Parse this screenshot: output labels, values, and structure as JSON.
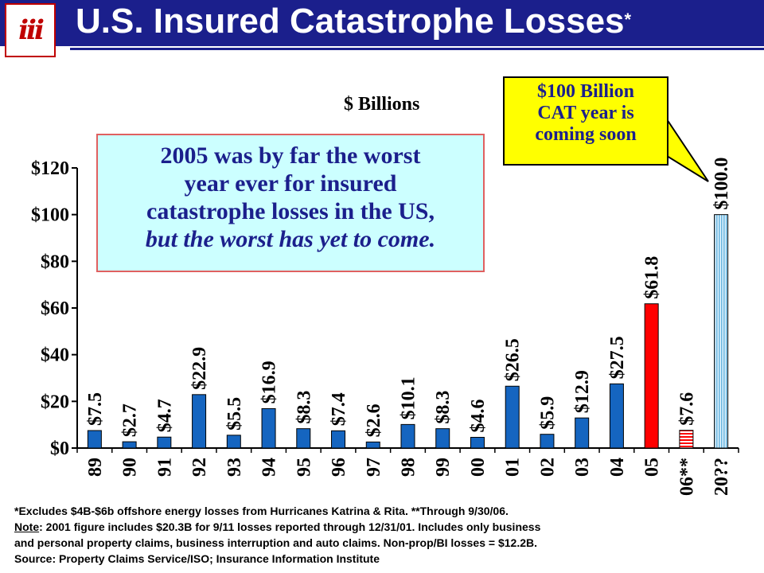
{
  "header": {
    "title": "U.S. Insured Catastrophe Losses",
    "title_mark": "*",
    "logo_text": "iii"
  },
  "unit_label": "$ Billions",
  "annotation": {
    "line1": "2005 was by far the worst",
    "line2": "year ever for insured",
    "line3": "catastrophe losses in the US,",
    "line4": "but the worst has yet to come."
  },
  "callout": {
    "line1": "$100 Billion",
    "line2": "CAT year is",
    "line3": "coming soon"
  },
  "footnotes": {
    "line1": "*Excludes $4B-$6b offshore energy losses from Hurricanes Katrina & Rita. **Through 9/30/06.",
    "note_label": "Note",
    "line2": ": 2001 figure includes $20.3B for 9/11 losses reported through 12/31/01.  Includes only business",
    "line3": "and personal property claims, business interruption and auto claims.  Non-prop/BI losses = $12.2B.",
    "line4": "Source:  Property Claims Service/ISO; Insurance Information Institute"
  },
  "colors": {
    "header": "#1b1f8c",
    "bar_default": "#1565c0",
    "bar_2005": "#ff0000",
    "bar_2006": "#ff0000",
    "bar_future": "#a8d8f0",
    "annotation_bg": "#ccffff",
    "callout_bg": "#ffff00"
  },
  "chart_data": {
    "type": "bar",
    "categories": [
      "89",
      "90",
      "91",
      "92",
      "93",
      "94",
      "95",
      "96",
      "97",
      "98",
      "99",
      "00",
      "01",
      "02",
      "03",
      "04",
      "05",
      "06**",
      "20??"
    ],
    "values": [
      7.5,
      2.7,
      4.7,
      22.9,
      5.5,
      16.9,
      8.3,
      7.4,
      2.6,
      10.1,
      8.3,
      4.6,
      26.5,
      5.9,
      12.9,
      27.5,
      61.8,
      7.6,
      100.0
    ],
    "data_labels": [
      "$7.5",
      "$2.7",
      "$4.7",
      "$22.9",
      "$5.5",
      "$16.9",
      "$8.3",
      "$7.4",
      "$2.6",
      "$10.1",
      "$8.3",
      "$4.6",
      "$26.5",
      "$5.9",
      "$12.9",
      "$27.5",
      "$61.8",
      "$7.6",
      "$100.0"
    ],
    "styles": [
      "solid",
      "solid",
      "solid",
      "solid",
      "solid",
      "solid",
      "solid",
      "solid",
      "solid",
      "solid",
      "solid",
      "solid",
      "solid",
      "solid",
      "solid",
      "solid",
      "red",
      "red-striped",
      "blue-striped"
    ],
    "ylim": [
      0,
      120
    ],
    "yticks": [
      0,
      20,
      40,
      60,
      80,
      100,
      120
    ],
    "ytick_labels": [
      "$0",
      "$20",
      "$40",
      "$60",
      "$80",
      "$100",
      "$120"
    ],
    "grid": false,
    "legend": "none"
  }
}
